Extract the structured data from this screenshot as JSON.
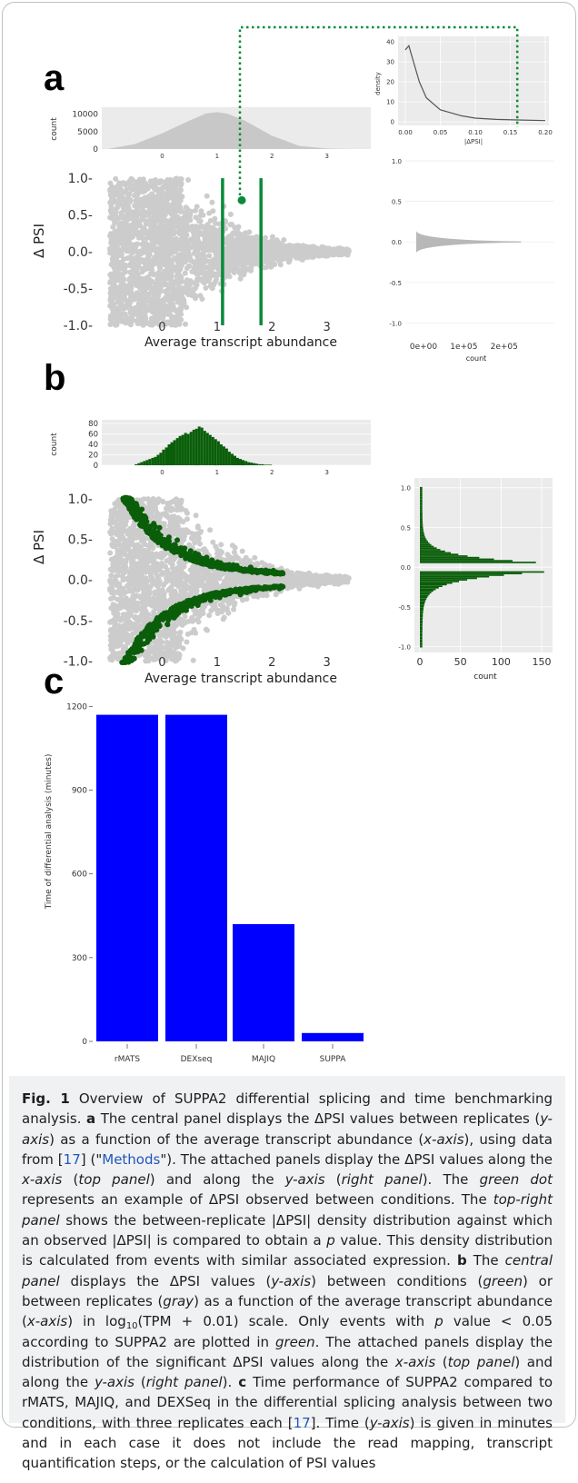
{
  "panel_labels": {
    "a": "a",
    "b": "b",
    "c": "c"
  },
  "chart_data": [
    {
      "panel": "a",
      "role": "top-histogram",
      "type": "area",
      "ylabel": "count",
      "y_ticks": [
        "0",
        "5000",
        "10000"
      ],
      "x_ticks": [
        "0",
        "1",
        "2",
        "3"
      ],
      "x": [
        -1.0,
        -0.5,
        0.0,
        0.5,
        0.8,
        1.0,
        1.2,
        1.5,
        2.0,
        2.5,
        3.0,
        3.4
      ],
      "y": [
        0,
        1400,
        4500,
        8200,
        10200,
        10600,
        10100,
        8200,
        3800,
        900,
        150,
        0
      ],
      "ylim": [
        0,
        12000
      ],
      "xlim": [
        -1.1,
        3.8
      ]
    },
    {
      "panel": "a",
      "role": "density-inset",
      "type": "line",
      "ylabel": "density",
      "xlabel": "|ΔPSI|",
      "y_ticks": [
        "0",
        "10",
        "20",
        "30",
        "40"
      ],
      "x_ticks": [
        "0.00",
        "0.05",
        "0.10",
        "0.15",
        "0.20"
      ],
      "x": [
        0.0,
        0.005,
        0.01,
        0.02,
        0.03,
        0.05,
        0.08,
        0.1,
        0.13,
        0.16,
        0.2
      ],
      "y": [
        36,
        38,
        32,
        20,
        12,
        6,
        3,
        1.8,
        1.2,
        0.9,
        0.6
      ],
      "ylim": [
        0,
        40
      ],
      "xlim": [
        0,
        0.2
      ],
      "marker_x": 0.16
    },
    {
      "panel": "a",
      "role": "central-scatter",
      "type": "scatter",
      "xlabel": "Average transcript abundance",
      "ylabel": "Δ PSI",
      "y_ticks": [
        "1.0",
        "0.5",
        "0.0",
        "-0.5",
        "-1.0"
      ],
      "x_ticks": [
        "0",
        "1",
        "2",
        "3"
      ],
      "xlim": [
        -1.1,
        3.8
      ],
      "ylim": [
        -1.05,
        1.1
      ],
      "vlines": [
        1.1,
        1.8
      ],
      "highlight_point": {
        "x": 1.45,
        "y": 0.7
      },
      "series": [
        {
          "color": "#cccccc"
        }
      ]
    },
    {
      "panel": "a",
      "role": "right-histogram",
      "type": "bar",
      "xlabel": "count",
      "y_ticks": [
        "1.0",
        "0.5",
        "0.0",
        "-0.5",
        "-1.0"
      ],
      "x_ticks": [
        "0e+00",
        "1e+05",
        "2e+05"
      ],
      "ylim": [
        -1.05,
        1.1
      ]
    },
    {
      "panel": "b",
      "role": "top-histogram",
      "type": "bar",
      "ylabel": "count",
      "y_ticks": [
        "0",
        "20",
        "40",
        "60",
        "80"
      ],
      "x_ticks": [
        "0",
        "1",
        "2",
        "3"
      ],
      "xlim": [
        -1.1,
        3.8
      ],
      "ylim": [
        0,
        80
      ],
      "bins_start": -0.5,
      "bin_width": 0.05,
      "counts": [
        2,
        4,
        6,
        8,
        10,
        12,
        14,
        16,
        20,
        24,
        30,
        34,
        40,
        44,
        48,
        52,
        56,
        58,
        62,
        60,
        64,
        68,
        70,
        74,
        72,
        66,
        62,
        58,
        54,
        50,
        46,
        40,
        36,
        32,
        26,
        22,
        18,
        14,
        12,
        10,
        8,
        6,
        5,
        4,
        3,
        2,
        2,
        1,
        1,
        1
      ]
    },
    {
      "panel": "b",
      "role": "central-scatter",
      "type": "scatter",
      "xlabel": "Average transcript abundance",
      "ylabel": "Δ PSI",
      "y_ticks": [
        "1.0",
        "0.5",
        "0.0",
        "-0.5",
        "-1.0"
      ],
      "x_ticks": [
        "0",
        "1",
        "2",
        "3"
      ],
      "xlim": [
        -1.1,
        3.8
      ],
      "ylim": [
        -1.05,
        1.1
      ],
      "series": [
        {
          "name_color": "gray",
          "color": "#cccccc"
        },
        {
          "name_color": "green",
          "color": "#0a5e0a"
        }
      ]
    },
    {
      "panel": "b",
      "role": "right-histogram",
      "type": "bar",
      "xlabel": "count",
      "y_ticks": [
        "1.0",
        "0.5",
        "0.0",
        "-0.5",
        "-1.0"
      ],
      "x_ticks": [
        "0",
        "50",
        "100",
        "150"
      ],
      "xlim": [
        0,
        150
      ],
      "ylim": [
        -1.05,
        1.1
      ]
    },
    {
      "panel": "c",
      "type": "bar",
      "ylabel": "Time of differential analysis (minutes)",
      "categories": [
        "rMATS",
        "DEXseq",
        "MAJIQ",
        "SUPPA"
      ],
      "values": [
        1170,
        1170,
        420,
        30
      ],
      "y_ticks": [
        "0",
        "300",
        "600",
        "900",
        "1200"
      ],
      "ylim": [
        0,
        1250
      ],
      "color": "#0000ff"
    }
  ],
  "caption": {
    "fig": "Fig. 1",
    "s1": " Overview of SUPPA2 differential splicing and time benchmarking analysis. ",
    "a": "a",
    "s2": " The central panel displays the ΔPSI values between replicates (",
    "yaxis": "y-axis",
    "s3": ") as a function of the average transcript abundance (",
    "xaxis": "x-axis",
    "s4": "), using data from [",
    "ref17": "17",
    "s5": "] (\"",
    "methods": "Methods",
    "s6": "\"). The attached panels display the ΔPSI values along the ",
    "xaxis2": "x-axis",
    "s7": " (",
    "toppanel": "top panel",
    "s8": ") and along the ",
    "yaxis2": "y-axis",
    "s9": " (",
    "rightpanel": "right panel",
    "s10": "). The ",
    "greendot": "green dot",
    "s11": " represents an example of ΔPSI observed between conditions. The ",
    "toprightpanel": "top-right panel",
    "s12": " shows the between-replicate |ΔPSI| density distribution against which an observed |ΔPSI| is compared to obtain a ",
    "p1": "p",
    "s13": " value. This density distribution is calculated from events with similar associated expression. ",
    "b": "b",
    "s14": " The ",
    "centralpanel": "central panel",
    "s15": " displays the ΔPSI values (",
    "yaxis3": "y-axis",
    "s16": ") between conditions (",
    "green": "green",
    "s17": ") or between replicates (",
    "gray": "gray",
    "s18": ") as a function of the average transcript abundance (",
    "xaxis3": "x-axis",
    "s19": ") in log",
    "sub10": "10",
    "s20": "(TPM + 0.01) scale. Only events with ",
    "p2": "p",
    "s21": " value < 0.05 according to SUPPA2 are plotted in ",
    "green2": "green",
    "s22": ". The attached panels display the distribution of the significant ΔPSI values along the ",
    "xaxis4": "x-axis",
    "s23": " (",
    "toppanel2": "top panel",
    "s24": ") and along the ",
    "yaxis4": "y-axis",
    "s25": " (",
    "rightpanel2": "right panel",
    "s26": "). ",
    "c": "c",
    "s27": " Time performance of SUPPA2 compared to rMATS, MAJIQ, and DEXSeq in the differential splicing analysis between two conditions, with three replicates each [",
    "ref17b": "17",
    "s28": "]. Time (",
    "yaxis5": "y-axis",
    "s29": ") is given in minutes and in each case it does not include the read mapping, transcript quantification steps, or the calculation of PSI values"
  }
}
